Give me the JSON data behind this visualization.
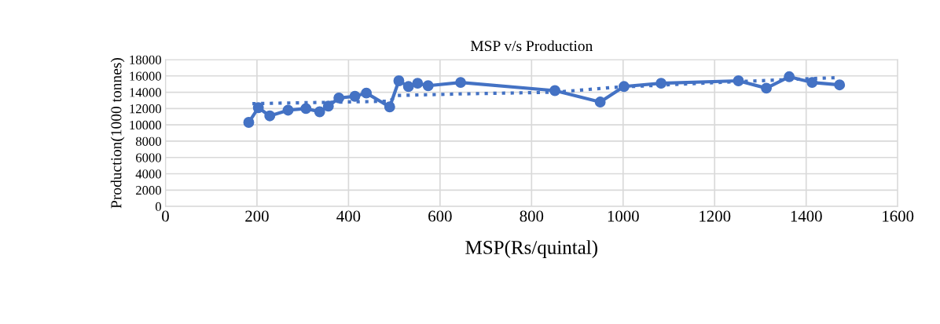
{
  "chart_data": {
    "type": "line",
    "title": "MSP v/s Production",
    "xlabel": "MSP(Rs/quintal)",
    "ylabel": "Production(1000 tonnes)",
    "xlim": [
      0,
      1600
    ],
    "xticks": [
      0,
      200,
      400,
      600,
      800,
      1000,
      1200,
      1400,
      1600
    ],
    "ylim": [
      0,
      18000
    ],
    "yticks": [
      0,
      2000,
      4000,
      6000,
      8000,
      10000,
      12000,
      14000,
      16000,
      18000
    ],
    "grid": true,
    "series": [
      {
        "color": "#4472c4",
        "marker": "circle",
        "line_style": "solid",
        "x": [
          182,
          203,
          228,
          268,
          307,
          337,
          356,
          379,
          414,
          439,
          490,
          510,
          531,
          551,
          574,
          645,
          851,
          950,
          1002,
          1083,
          1252,
          1313,
          1363,
          1413,
          1473
        ],
        "values": [
          10300,
          12100,
          11100,
          11800,
          12000,
          11600,
          12300,
          13300,
          13500,
          13900,
          12200,
          15400,
          14700,
          15100,
          14800,
          15200,
          14200,
          12800,
          14700,
          15100,
          15400,
          14500,
          15900,
          15200,
          14900
        ]
      },
      {
        "color": "#4472c4",
        "marker": "none",
        "line_style": "dotted",
        "x": [
          190,
          490,
          505,
          650,
          850,
          980,
          1250,
          1470
        ],
        "values": [
          12600,
          12900,
          13600,
          13800,
          14000,
          14600,
          15300,
          15800
        ]
      }
    ]
  }
}
